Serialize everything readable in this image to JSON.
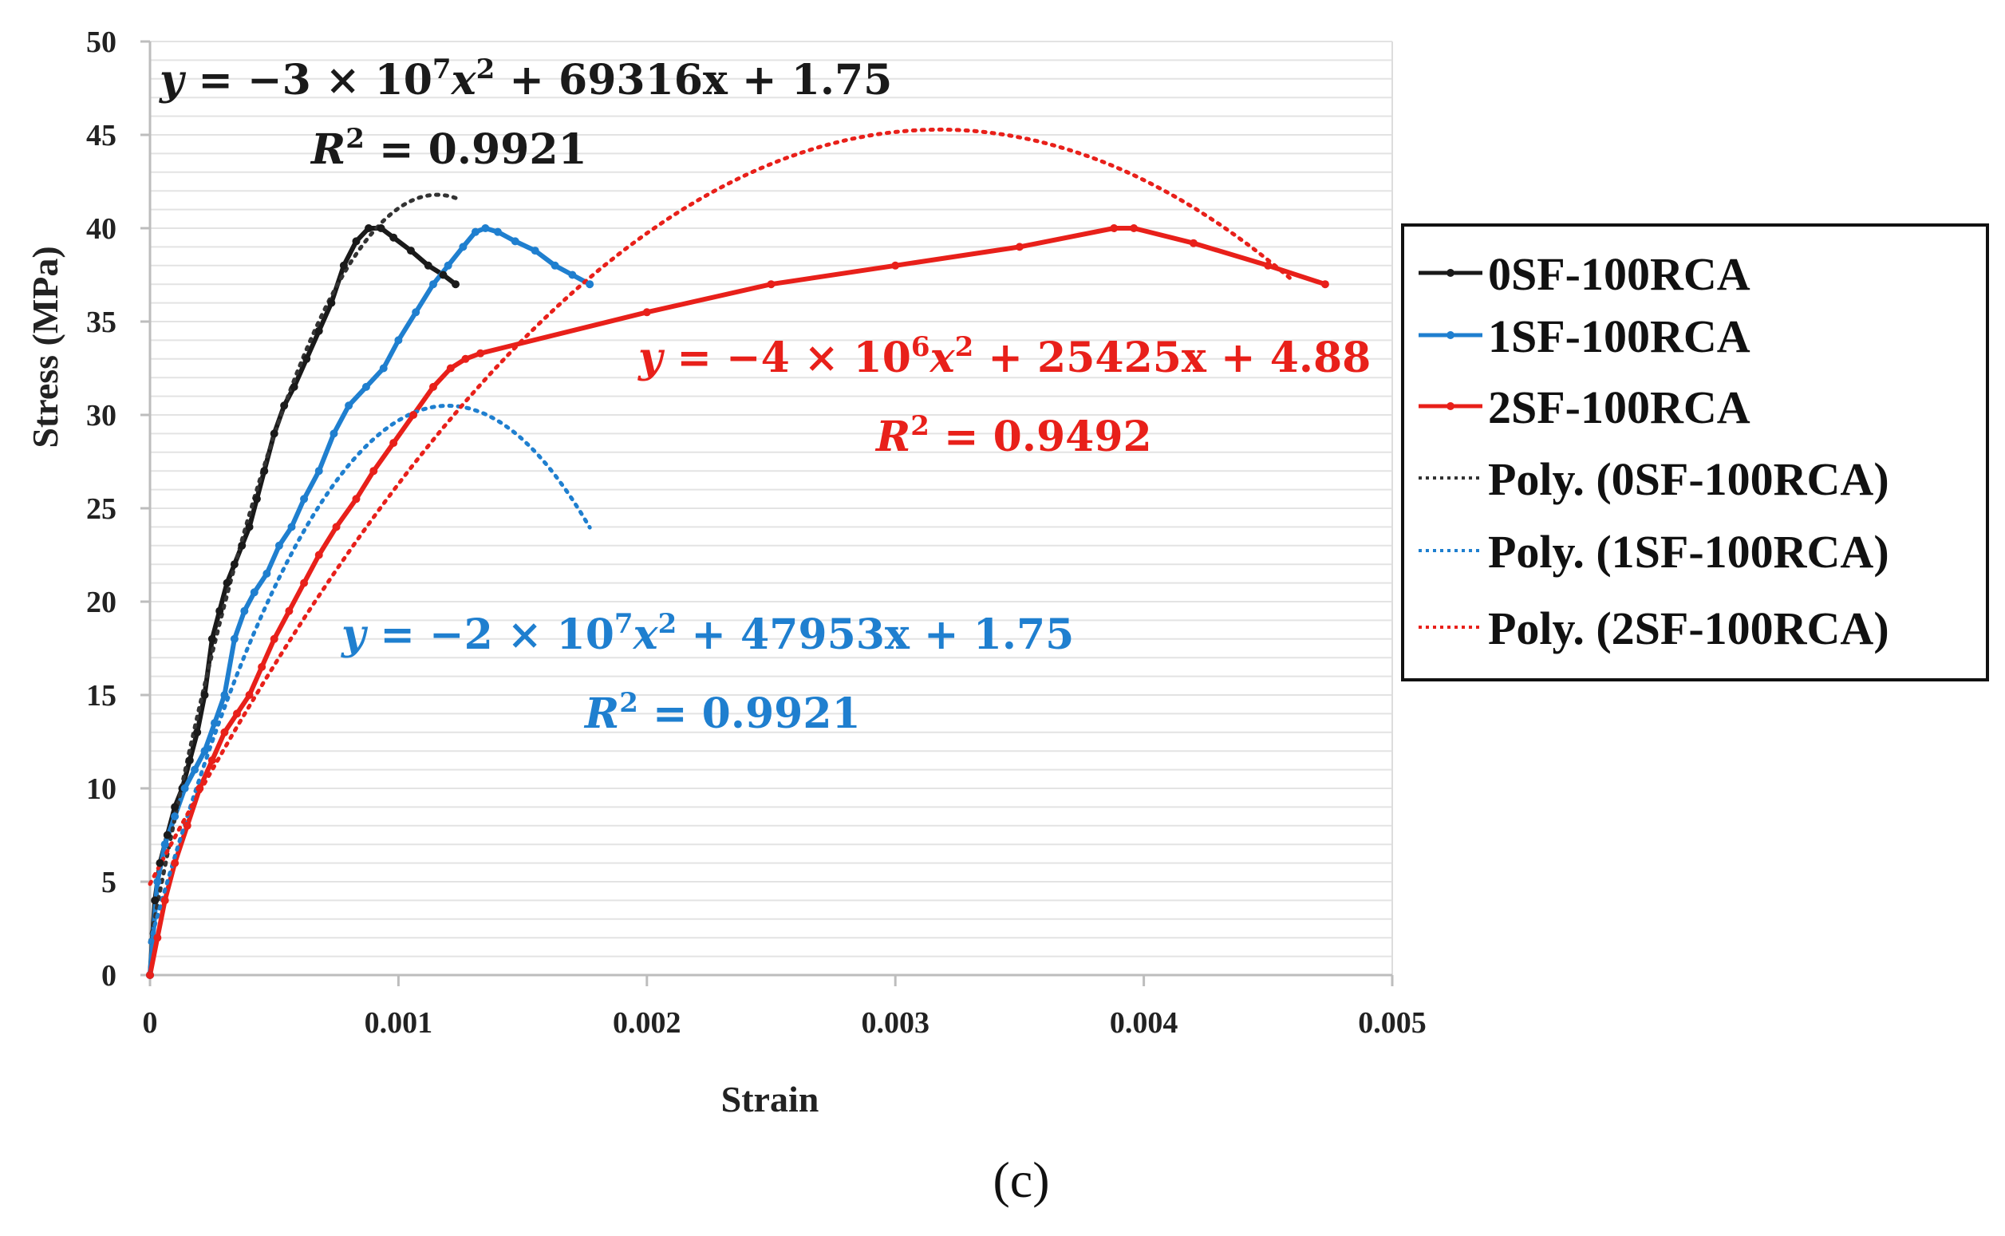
{
  "chart_data": {
    "type": "line",
    "title": "",
    "xlabel": "Strain",
    "ylabel": "Stress (MPa)",
    "xlim": [
      0,
      0.005
    ],
    "ylim": [
      0,
      50
    ],
    "x_ticks": [
      "0",
      "0.001",
      "0.002",
      "0.003",
      "0.004",
      "0.005"
    ],
    "y_ticks": [
      "0",
      "5",
      "10",
      "15",
      "20",
      "25",
      "30",
      "35",
      "40",
      "45",
      "50"
    ],
    "grid": true,
    "legend_position": "right",
    "series": [
      {
        "name": "0SF-100RCA",
        "style": "solid",
        "color": "#1a1a1a",
        "x": [
          0,
          2e-05,
          4e-05,
          7e-05,
          0.0001,
          0.00013,
          0.00016,
          0.00019,
          0.00022,
          0.00025,
          0.00028,
          0.00031,
          0.00034,
          0.00037,
          0.0004,
          0.00043,
          0.00046,
          0.0005,
          0.00054,
          0.00058,
          0.00063,
          0.00068,
          0.00073,
          0.00078,
          0.00083,
          0.00088,
          0.00093,
          0.00098,
          0.00105,
          0.00112,
          0.00118,
          0.00123
        ],
        "y": [
          0,
          4,
          6,
          7.5,
          9,
          10,
          11.5,
          13,
          15,
          18,
          19.5,
          21,
          22,
          23,
          24,
          25.5,
          27,
          29,
          30.5,
          31.5,
          33,
          34.5,
          36,
          38,
          39.3,
          40,
          40,
          39.5,
          38.8,
          38,
          37.5,
          37
        ]
      },
      {
        "name": "1SF-100RCA",
        "style": "solid",
        "color": "#1f7fcf",
        "x": [
          0,
          3e-05,
          6e-05,
          0.0001,
          0.00014,
          0.00018,
          0.00022,
          0.00026,
          0.0003,
          0.00034,
          0.00038,
          0.00042,
          0.00047,
          0.00052,
          0.00057,
          0.00062,
          0.00068,
          0.00074,
          0.0008,
          0.00087,
          0.00094,
          0.001,
          0.00107,
          0.00114,
          0.0012,
          0.00126,
          0.00131,
          0.00135,
          0.0014,
          0.00147,
          0.00155,
          0.00163,
          0.0017,
          0.00177
        ],
        "y": [
          0,
          5,
          7,
          8.5,
          10,
          11,
          12,
          13.5,
          15,
          18,
          19.5,
          20.5,
          21.5,
          23,
          24,
          25.5,
          27,
          29,
          30.5,
          31.5,
          32.5,
          34,
          35.5,
          37,
          38,
          39,
          39.8,
          40,
          39.8,
          39.3,
          38.8,
          38,
          37.5,
          37
        ]
      },
      {
        "name": "2SF-100RCA",
        "style": "solid",
        "color": "#e8201a",
        "x": [
          0,
          3e-05,
          6e-05,
          0.0001,
          0.00015,
          0.0002,
          0.00025,
          0.0003,
          0.00035,
          0.0004,
          0.00045,
          0.0005,
          0.00056,
          0.00062,
          0.00068,
          0.00075,
          0.00083,
          0.0009,
          0.00098,
          0.00106,
          0.00114,
          0.00121,
          0.00127,
          0.00133,
          0.002,
          0.0025,
          0.003,
          0.0035,
          0.00388,
          0.00396,
          0.0042,
          0.0045,
          0.00473
        ],
        "y": [
          0,
          2,
          4,
          6,
          8,
          10,
          11.5,
          13,
          14,
          15,
          16.5,
          18,
          19.5,
          21,
          22.5,
          24,
          25.5,
          27,
          28.5,
          30,
          31.5,
          32.5,
          33,
          33.3,
          35.5,
          37,
          38,
          39,
          40,
          40,
          39.2,
          38,
          37
        ]
      },
      {
        "name": "Poly. (0SF-100RCA)",
        "style": "dotted",
        "color": "#333333",
        "fit": {
          "a": -30000000,
          "b": 69316,
          "c": 1.75
        },
        "x_range": [
          0,
          0.00123
        ]
      },
      {
        "name": "Poly. (1SF-100RCA)",
        "style": "dotted",
        "color": "#1f7fcf",
        "fit": {
          "a": -20000000,
          "b": 47953,
          "c": 1.75
        },
        "x_range": [
          0,
          0.00177
        ]
      },
      {
        "name": "Poly. (2SF-100RCA)",
        "style": "dotted",
        "color": "#e8201a",
        "fit": {
          "a": -4000000,
          "b": 25425,
          "c": 4.88
        },
        "x_range": [
          0,
          0.0046
        ]
      }
    ],
    "annotations": [
      {
        "color": "#1a1a1a",
        "eq_prefix": "y",
        "eq_coef_text": " = −3 × 10",
        "eq_exp": "7",
        "eq_mid": "x",
        "eq_mid_exp": "2",
        "eq_tail": " + 69316x + 1.75",
        "r2_label": "R",
        "r2_exp": "2",
        "r2_tail": " = 0.9921"
      },
      {
        "color": "#e8201a",
        "eq_prefix": "y",
        "eq_coef_text": " = −4 × 10",
        "eq_exp": "6",
        "eq_mid": "x",
        "eq_mid_exp": "2",
        "eq_tail": " + 25425x + 4.88",
        "r2_label": "R",
        "r2_exp": "2",
        "r2_tail": " = 0.9492"
      },
      {
        "color": "#1f7fcf",
        "eq_prefix": "y",
        "eq_coef_text": " = −2 × 10",
        "eq_exp": "7",
        "eq_mid": "x",
        "eq_mid_exp": "2",
        "eq_tail": " + 47953x + 1.75",
        "r2_label": "R",
        "r2_exp": "2",
        "r2_tail": " = 0.9921"
      }
    ]
  },
  "legend": {
    "items": [
      "0SF-100RCA",
      "1SF-100RCA",
      "2SF-100RCA",
      "Poly. (0SF-100RCA)",
      "Poly. (1SF-100RCA)",
      "Poly. (2SF-100RCA)"
    ]
  },
  "caption": "(c)"
}
